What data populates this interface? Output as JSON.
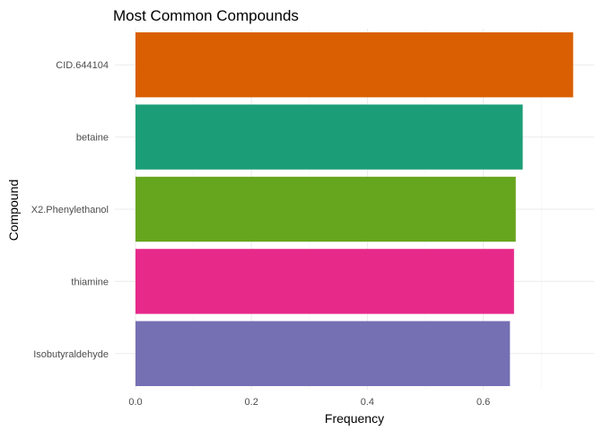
{
  "chart_data": {
    "type": "bar",
    "orientation": "horizontal",
    "title": "Most Common Compounds",
    "xlabel": "Frequency",
    "ylabel": "Compound",
    "categories": [
      "CID.644104",
      "betaine",
      "X2.Phenylethanol",
      "thiamine",
      "Isobutyraldehyde"
    ],
    "values": [
      0.755,
      0.668,
      0.656,
      0.653,
      0.646
    ],
    "colors": [
      "#d95f02",
      "#1b9e77",
      "#66a61e",
      "#e7298a",
      "#7570b3"
    ],
    "xlim": [
      0,
      0.76
    ],
    "x_ticks": [
      0.0,
      0.2,
      0.4,
      0.6
    ],
    "x_tick_labels": [
      "0.0",
      "0.2",
      "0.4",
      "0.6"
    ],
    "grid": true,
    "legend": "none"
  }
}
